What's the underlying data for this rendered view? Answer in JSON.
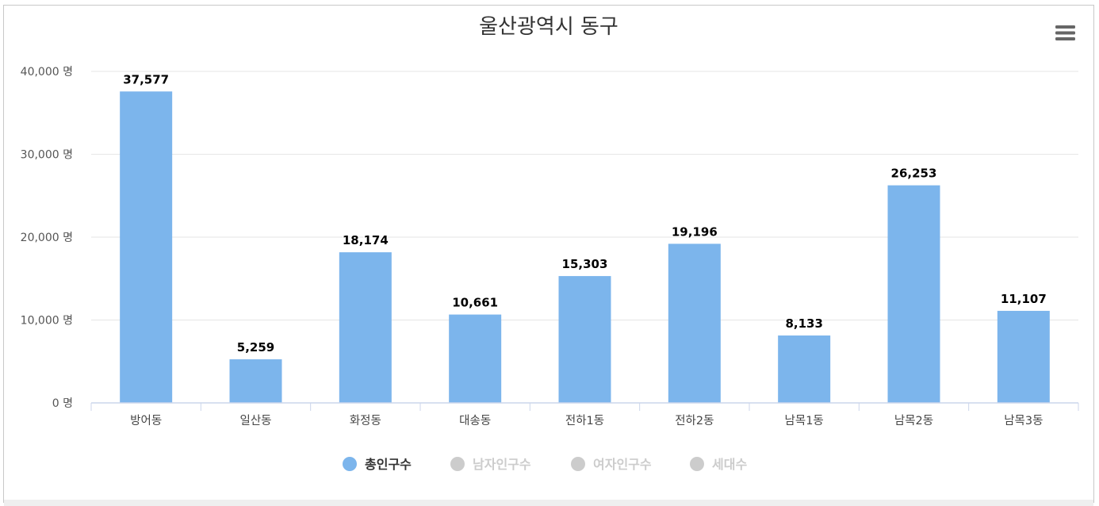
{
  "chart_data": {
    "type": "bar",
    "title": "울산광역시 동구",
    "categories": [
      "방어동",
      "일산동",
      "화정동",
      "대송동",
      "전하1동",
      "전하2동",
      "남목1동",
      "남목2동",
      "남목3동"
    ],
    "series": [
      {
        "name": "총인구수",
        "color": "#7cb5ec",
        "visible": true,
        "values": [
          37577,
          5259,
          18174,
          10661,
          15303,
          19196,
          8133,
          26253,
          11107
        ],
        "value_labels": [
          "37,577",
          "5,259",
          "18,174",
          "10,661",
          "15,303",
          "19,196",
          "8,133",
          "26,253",
          "11,107"
        ]
      },
      {
        "name": "남자인구수",
        "color": "#cccccc",
        "visible": false
      },
      {
        "name": "여자인구수",
        "color": "#cccccc",
        "visible": false
      },
      {
        "name": "세대수",
        "color": "#cccccc",
        "visible": false
      }
    ],
    "ylim": [
      0,
      40000
    ],
    "yticks": [
      0,
      10000,
      20000,
      30000,
      40000
    ],
    "ytick_labels": [
      "0 명",
      "10,000 명",
      "20,000 명",
      "30,000 명",
      "40,000 명"
    ],
    "grid": true,
    "legend_position": "bottom-center",
    "colors": {
      "legend_active_text": "#333333",
      "legend_hidden_text": "#cccccc",
      "grid": "#e6e6e6",
      "axis": "#ccd6eb"
    }
  },
  "menu": {
    "icon": "hamburger-menu-icon"
  }
}
